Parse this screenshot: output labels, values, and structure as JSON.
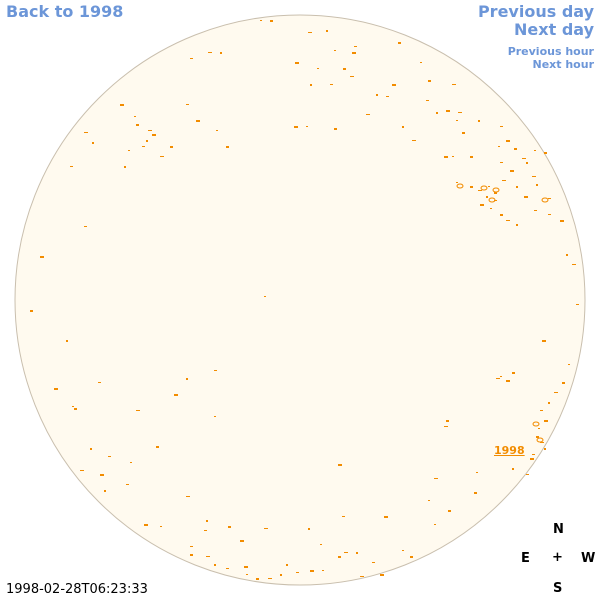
{
  "nav": {
    "back_label": "Back to 1998",
    "prev_day_label": "Previous day",
    "next_day_label": "Next day",
    "prev_hour_label": "Previous hour",
    "next_hour_label": "Next hour"
  },
  "timestamp": "1998-02-28T06:23:33",
  "compass": {
    "north": "N",
    "east": "E",
    "center": "+",
    "west": "W",
    "south": "S"
  },
  "region_year_label": "1998",
  "colors": {
    "link": "#6c96d8",
    "disk_fill": "#fffaef",
    "disk_edge": "#c9bfae",
    "feature": "#f28c00"
  }
}
